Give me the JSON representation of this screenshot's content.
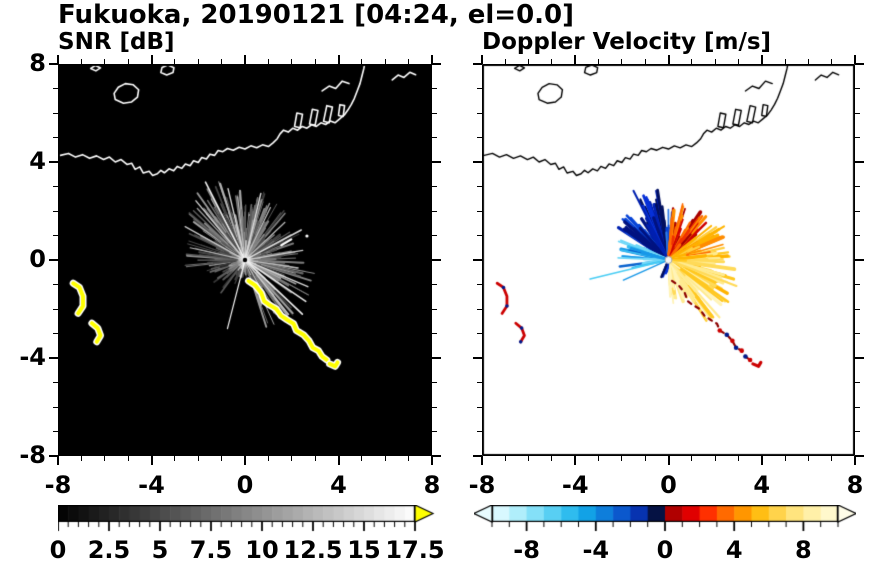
{
  "figure": {
    "title": "Fukuoka, 20190121 [04:24, el=0.0]"
  },
  "chart_data": {
    "type": "heatmap",
    "subtype": "radar-ppi-pair",
    "title": "Fukuoka, 20190121 [04:24, el=0.0]",
    "station": "Fukuoka",
    "date": "20190121",
    "time": "04:24",
    "elevation": "el=0.0",
    "axes": {
      "xlim": [
        -8,
        8
      ],
      "ylim": [
        -8,
        8
      ],
      "major_ticks": [
        -8,
        -4,
        0,
        4,
        8
      ],
      "minor_step": 1,
      "x_tick_labels": [
        "-8",
        "-4",
        "0",
        "4",
        "8"
      ],
      "y_tick_values": [
        8,
        4,
        0,
        -4,
        -8
      ],
      "y_tick_labels": [
        "8",
        "4",
        "0",
        "-4",
        "-8"
      ],
      "grid": false
    },
    "panels": [
      {
        "id": "snr",
        "title": "SNR [dB]",
        "background": "#000000",
        "colorbar": {
          "min": 0,
          "max": 17.5,
          "segments": 35,
          "start_color": "#000000",
          "end_color": "#ffffff",
          "overflow_color": "#ffff00",
          "minor_tick_step": 0.5,
          "tick_values": [
            0,
            2.5,
            5,
            7.5,
            10,
            12.5,
            15,
            17.5
          ],
          "tick_labels": [
            "0",
            "2.5",
            "5",
            "7.5",
            "10",
            "12.5",
            "15",
            "17.5"
          ]
        },
        "streak_sectors": [
          {
            "a0": -8,
            "a1": 50,
            "n": 70,
            "rmin": 0.4,
            "rmax": 2.6,
            "gmin": 50,
            "gmax": 150
          },
          {
            "a0": 50,
            "a1": 95,
            "n": 80,
            "rmin": 0.4,
            "rmax": 2.9,
            "gmin": 60,
            "gmax": 170
          },
          {
            "a0": 95,
            "a1": 145,
            "n": 90,
            "rmin": 0.5,
            "rmax": 3.4,
            "gmin": 60,
            "gmax": 180
          },
          {
            "a0": 145,
            "a1": 190,
            "n": 55,
            "rmin": 0.4,
            "rmax": 2.7,
            "gmin": 50,
            "gmax": 150
          },
          {
            "a0": 190,
            "a1": 235,
            "n": 26,
            "rmin": 0.3,
            "rmax": 1.7,
            "gmin": 40,
            "gmax": 110
          },
          {
            "a0": 235,
            "a1": 262,
            "n": 12,
            "rmin": 0.25,
            "rmax": 1.1,
            "gmin": 35,
            "gmax": 90
          },
          {
            "a0": 262,
            "a1": 288,
            "n": 5,
            "rmin": 0.2,
            "rmax": 0.8,
            "gmin": 30,
            "gmax": 70
          },
          {
            "a0": 288,
            "a1": 352,
            "n": 85,
            "rmin": 0.5,
            "rmax": 3.1,
            "gmin": 60,
            "gmax": 170
          },
          {
            "a0": 0,
            "a1": 360,
            "n": 140,
            "rmin": 0.12,
            "rmax": 0.8,
            "gmin": 70,
            "gmax": 200
          }
        ],
        "bright_rays": [
          {
            "a": 118,
            "r": 3.6,
            "g": 235,
            "w": 1.6
          },
          {
            "a": 131,
            "r": 3.2,
            "g": 205,
            "w": 1.4
          },
          {
            "a": 104,
            "r": 3.0,
            "g": 215,
            "w": 1.4
          },
          {
            "a": 97,
            "r": 2.6,
            "g": 185,
            "w": 1.2
          },
          {
            "a": 76,
            "r": 2.8,
            "g": 215,
            "w": 1.5
          },
          {
            "a": 63,
            "r": 2.4,
            "g": 190,
            "w": 1.2
          },
          {
            "a": 42,
            "r": 2.3,
            "g": 185,
            "w": 1.2
          },
          {
            "a": 27,
            "r": 2.7,
            "g": 220,
            "w": 1.5
          },
          {
            "a": 9,
            "r": 2.5,
            "g": 205,
            "w": 1.3
          },
          {
            "a": 352,
            "r": 2.3,
            "g": 190,
            "w": 1.2
          },
          {
            "a": 338,
            "r": 2.9,
            "g": 215,
            "w": 1.5
          },
          {
            "a": 327,
            "r": 3.1,
            "g": 230,
            "w": 1.6
          },
          {
            "a": 318,
            "r": 3.3,
            "g": 235,
            "w": 1.7
          },
          {
            "a": 310,
            "r": 2.9,
            "g": 205,
            "w": 1.4
          },
          {
            "a": 300,
            "r": 2.5,
            "g": 185,
            "w": 1.2
          },
          {
            "a": 255,
            "r": 2.9,
            "g": 245,
            "w": 1.2
          },
          {
            "a": 152,
            "r": 2.9,
            "g": 200,
            "w": 1.3
          },
          {
            "a": 168,
            "r": 2.4,
            "g": 180,
            "w": 1.2
          }
        ],
        "marks": [
          {
            "type": "dash",
            "x1": 1.55,
            "y1": 0.6,
            "x2": 1.98,
            "y2": 0.84,
            "w": 2.2,
            "color": "#ffffff"
          },
          {
            "type": "dot",
            "x": 2.65,
            "y": 0.98,
            "r": 1.6,
            "color": "#ffffff"
          }
        ]
      },
      {
        "id": "velocity",
        "title": "Doppler Velocity [m/s]",
        "background": "#ffffff",
        "colorbar": {
          "min": -10,
          "max": 10,
          "minor_tick_step": 1,
          "tick_values": [
            -8,
            -4,
            0,
            4,
            8
          ],
          "tick_labels": [
            "-8",
            "-4",
            "0",
            "4",
            "8"
          ],
          "segment_colors": [
            "#d8f8ff",
            "#b0eefb",
            "#84e0f8",
            "#58cff3",
            "#2fbcee",
            "#12a2e6",
            "#0e7edb",
            "#0b58cd",
            "#0733b0",
            "#051244",
            "#b00000",
            "#e00000",
            "#ff3000",
            "#ff6a00",
            "#ff9600",
            "#ffbe14",
            "#ffd34b",
            "#ffe47e",
            "#fff0a8",
            "#fff8cc"
          ],
          "under_arrow_color": "#e8fcff",
          "over_arrow_color": "#fffde8"
        },
        "beam_sectors": [
          {
            "a0": 95,
            "a1": 122,
            "n": 55,
            "rmin": 0.7,
            "rmax": 3.0,
            "colors": [
              "#001280",
              "#0020b0",
              "#0630d8",
              "#021060"
            ]
          },
          {
            "a0": 122,
            "a1": 150,
            "n": 45,
            "rmin": 0.6,
            "rmax": 2.6,
            "colors": [
              "#0020b0",
              "#0845d8",
              "#001280"
            ]
          },
          {
            "a0": 85,
            "a1": 95,
            "n": 14,
            "rmin": 0.5,
            "rmax": 2.1,
            "colors": [
              "#0845d8",
              "#2f7de8"
            ]
          },
          {
            "a0": 150,
            "a1": 192,
            "n": 30,
            "rmin": 0.5,
            "rmax": 2.3,
            "colors": [
              "#1898e8",
              "#38bdf2",
              "#6fd8f8",
              "#0a63cf"
            ]
          },
          {
            "a0": 38,
            "a1": 85,
            "n": 65,
            "rmin": 0.5,
            "rmax": 2.4,
            "colors": [
              "#cf0000",
              "#f03000",
              "#ff6a00",
              "#a80000",
              "#ff9000"
            ]
          },
          {
            "a0": 8,
            "a1": 38,
            "n": 48,
            "rmin": 0.6,
            "rmax": 2.6,
            "colors": [
              "#ff8c00",
              "#ffb400",
              "#ff6a00",
              "#ffd040"
            ]
          },
          {
            "a0": -30,
            "a1": 8,
            "n": 70,
            "rmin": 0.6,
            "rmax": 2.9,
            "colors": [
              "#ffc820",
              "#ffda58",
              "#ffeb90",
              "#ffb400"
            ]
          },
          {
            "a0": -60,
            "a1": -30,
            "n": 55,
            "rmin": 0.5,
            "rmax": 3.1,
            "colors": [
              "#ffda58",
              "#ffeb90",
              "#fff4b8",
              "#ffc820"
            ]
          },
          {
            "a0": -88,
            "a1": -60,
            "n": 25,
            "rmin": 0.4,
            "rmax": 1.9,
            "colors": [
              "#ffeb90",
              "#fff4b8",
              "#ffda58"
            ]
          },
          {
            "a0": -118,
            "a1": -95,
            "n": 7,
            "rmin": 0.3,
            "rmax": 0.9,
            "colors": [
              "#0630d8",
              "#021060"
            ]
          }
        ],
        "rays": [
          {
            "a": 193,
            "r": 3.45,
            "c": "#48cdf4",
            "w": 1.6
          },
          {
            "a": 203,
            "r": 2.1,
            "c": "#1898e8",
            "w": 1.4
          },
          {
            "a": 118,
            "r": 3.2,
            "c": "#0020b0",
            "w": 2
          },
          {
            "a": 30,
            "r": 2.75,
            "c": "#ffb400",
            "w": 2
          },
          {
            "a": -20,
            "r": 3.1,
            "c": "#ffda58",
            "w": 2.2
          },
          {
            "a": -47,
            "r": 3.2,
            "c": "#ffeb90",
            "w": 2.2
          }
        ]
      }
    ],
    "coastline": {
      "stroke_on_snr": "#ffffff",
      "stroke_on_velocity": "#000000",
      "main": [
        [
          -8,
          4.25
        ],
        [
          -7.55,
          4.35
        ],
        [
          -7.25,
          4.2
        ],
        [
          -6.95,
          4.3
        ],
        [
          -6.65,
          4.15
        ],
        [
          -6.35,
          4.25
        ],
        [
          -6.05,
          4.1
        ],
        [
          -5.8,
          4.2
        ],
        [
          -5.55,
          4.0
        ],
        [
          -5.3,
          4.1
        ],
        [
          -5.05,
          3.9
        ],
        [
          -4.85,
          3.95
        ],
        [
          -4.7,
          3.7
        ],
        [
          -4.5,
          3.8
        ],
        [
          -4.35,
          3.55
        ],
        [
          -4.1,
          3.62
        ],
        [
          -3.95,
          3.45
        ],
        [
          -3.75,
          3.52
        ],
        [
          -3.6,
          3.66
        ],
        [
          -3.45,
          3.56
        ],
        [
          -3.25,
          3.72
        ],
        [
          -3.05,
          3.64
        ],
        [
          -2.9,
          3.82
        ],
        [
          -2.7,
          3.74
        ],
        [
          -2.55,
          3.92
        ],
        [
          -2.35,
          3.85
        ],
        [
          -2.2,
          4.05
        ],
        [
          -2.0,
          3.98
        ],
        [
          -1.85,
          4.18
        ],
        [
          -1.65,
          4.12
        ],
        [
          -1.5,
          4.32
        ],
        [
          -1.3,
          4.27
        ],
        [
          -1.15,
          4.47
        ],
        [
          -0.95,
          4.42
        ],
        [
          -0.75,
          4.55
        ],
        [
          -0.5,
          4.48
        ],
        [
          -0.25,
          4.6
        ],
        [
          0.0,
          4.53
        ],
        [
          0.25,
          4.66
        ],
        [
          0.5,
          4.58
        ],
        [
          0.75,
          4.7
        ],
        [
          1.0,
          4.63
        ],
        [
          1.2,
          4.78
        ],
        [
          1.38,
          4.95
        ],
        [
          1.5,
          5.15
        ],
        [
          1.65,
          5.3
        ],
        [
          1.85,
          5.22
        ],
        [
          2.05,
          5.38
        ],
        [
          2.25,
          5.3
        ],
        [
          2.45,
          5.45
        ],
        [
          2.65,
          5.38
        ],
        [
          2.85,
          5.52
        ],
        [
          3.05,
          5.45
        ],
        [
          3.25,
          5.6
        ],
        [
          3.45,
          5.53
        ],
        [
          3.65,
          5.67
        ],
        [
          3.85,
          5.6
        ],
        [
          4.05,
          5.76
        ],
        [
          4.25,
          5.92
        ],
        [
          4.4,
          6.12
        ],
        [
          4.55,
          6.35
        ],
        [
          4.68,
          6.6
        ],
        [
          4.8,
          6.9
        ],
        [
          4.92,
          7.2
        ],
        [
          5.0,
          7.5
        ],
        [
          5.08,
          7.8
        ],
        [
          5.12,
          8.0
        ]
      ],
      "islands": [
        [
          [
            -5.55,
            6.55
          ],
          [
            -5.2,
            6.4
          ],
          [
            -4.85,
            6.45
          ],
          [
            -4.6,
            6.65
          ],
          [
            -4.55,
            6.95
          ],
          [
            -4.78,
            7.15
          ],
          [
            -5.12,
            7.2
          ],
          [
            -5.42,
            7.05
          ],
          [
            -5.6,
            6.8
          ]
        ],
        [
          [
            -3.6,
            7.65
          ],
          [
            -3.35,
            7.55
          ],
          [
            -3.08,
            7.65
          ],
          [
            -3.04,
            7.85
          ],
          [
            -3.3,
            7.96
          ],
          [
            -3.55,
            7.86
          ]
        ],
        [
          [
            -6.6,
            7.82
          ],
          [
            -6.38,
            7.72
          ],
          [
            -6.18,
            7.84
          ],
          [
            -6.4,
            7.94
          ]
        ]
      ],
      "piers": [
        [
          [
            2.12,
            5.45
          ],
          [
            2.22,
            6.0
          ],
          [
            2.46,
            5.95
          ],
          [
            2.36,
            5.4
          ]
        ],
        [
          [
            2.76,
            5.55
          ],
          [
            2.88,
            6.15
          ],
          [
            3.12,
            6.1
          ],
          [
            3.0,
            5.5
          ]
        ],
        [
          [
            3.36,
            5.66
          ],
          [
            3.5,
            6.3
          ],
          [
            3.74,
            6.24
          ],
          [
            3.6,
            5.6
          ]
        ],
        [
          [
            4.0,
            5.9
          ],
          [
            4.06,
            6.34
          ],
          [
            4.26,
            6.3
          ],
          [
            4.2,
            5.86
          ]
        ]
      ],
      "lines": [
        [
          [
            3.3,
            6.9
          ],
          [
            3.6,
            7.1
          ],
          [
            3.88,
            7.0
          ],
          [
            4.16,
            7.3
          ],
          [
            4.45,
            7.2
          ]
        ],
        [
          [
            6.3,
            7.35
          ],
          [
            6.55,
            7.55
          ],
          [
            6.8,
            7.45
          ],
          [
            7.05,
            7.66
          ],
          [
            7.3,
            7.56
          ]
        ]
      ]
    },
    "clutter": {
      "snr_color": "#ffff00",
      "snr_outline": "#ffffff",
      "velocity_primary": "#cc0000",
      "velocity_dark": "#8b0000",
      "velocity_negative": "#001a8c",
      "left_cluster": [
        [
          [
            -7.35,
            -0.95
          ],
          [
            -7.08,
            -1.12
          ],
          [
            -6.93,
            -1.48
          ],
          [
            -6.93,
            -1.88
          ],
          [
            -7.14,
            -2.18
          ]
        ],
        [
          [
            -6.55,
            -2.58
          ],
          [
            -6.3,
            -2.78
          ],
          [
            -6.18,
            -3.08
          ],
          [
            -6.34,
            -3.34
          ]
        ]
      ],
      "ship_track": [
        [
          [
            0.15,
            -0.85
          ],
          [
            0.45,
            -1.05
          ],
          [
            0.7,
            -1.35
          ],
          [
            0.82,
            -1.68
          ],
          [
            1.05,
            -1.84
          ],
          [
            1.34,
            -2.0
          ],
          [
            1.55,
            -2.28
          ],
          [
            1.8,
            -2.44
          ],
          [
            2.08,
            -2.6
          ],
          [
            2.2,
            -2.88
          ],
          [
            2.5,
            -3.05
          ],
          [
            2.74,
            -3.3
          ],
          [
            2.9,
            -3.58
          ],
          [
            3.14,
            -3.7
          ],
          [
            3.3,
            -3.94
          ],
          [
            3.5,
            -4.08
          ]
        ],
        [
          [
            3.62,
            -4.24
          ],
          [
            3.86,
            -4.34
          ],
          [
            3.96,
            -4.18
          ]
        ]
      ]
    }
  }
}
